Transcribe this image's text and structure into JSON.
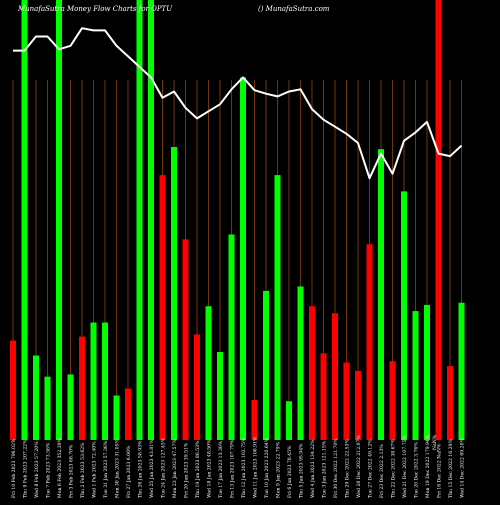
{
  "chart_data": {
    "type": "bar",
    "header_left": "MunafaSutra  Money Flow  Charts for OPTU",
    "header_right": "() MunafaSutra.com",
    "colors": {
      "background": "#000000",
      "up": "#00ff00",
      "down": "#ff0000",
      "line": "#ffffff",
      "grid": "#8b4513"
    },
    "ylim": [
      0,
      100
    ],
    "categories": [
      "Fri 10 Feb 2023",
      "Thu 9 Feb 2023",
      "Wed 8 Feb 2023",
      "Tue 7 Feb 2023",
      "Mon 6 Feb 2023",
      "Fri 3 Feb 2023",
      "Thu 2 Feb 2023",
      "Wed 1 Feb 2023",
      "Tue 31 Jan 2023",
      "Mon 30 Jan 2023",
      "Fri 27 Jan 2023",
      "Thu 26 Jan 2023",
      "Wed 25 Jan 2023",
      "Tue 24 Jan 2023",
      "Mon 23 Jan 2023",
      "Fri 20 Jan 2023",
      "Thu 19 Jan 2023",
      "Wed 18 Jan 2023",
      "Tue 17 Jan 2023",
      "Fri 13 Jan 2023",
      "Thu 12 Jan 2023",
      "Wed 11 Jan 2023",
      "Tue 10 Jan 2023",
      "Mon 9 Jan 2023",
      "Fri 6 Jan 2023",
      "Thu 5 Jan 2023",
      "Wed 4 Jan 2023",
      "Tue 3 Jan 2023",
      "Fri 30 Dec 2022",
      "Thu 29 Dec 2022",
      "Wed 28 Dec 2022",
      "Tue 27 Dec 2022",
      "Fri 23 Dec 2022",
      "Thu 22 Dec 2022",
      "Wed 21 Dec 2022",
      "Tue 20 Dec 2022",
      "Mon 19 Dec 2022",
      "Fri 16 Dec 2022",
      "Thu 15 Dec 2022",
      "Wed 14 Dec 2022"
    ],
    "tick_labels": [
      "Fri 10 Feb 2023 796.02%",
      "Thu 9 Feb 2023 207.22%",
      "Wed 8 Feb 2023 57.20%",
      "Tue 7 Feb 2023 73.56%",
      "Mon 6 Feb 2023 352.39%",
      "Fri 3 Feb 2023 68.70%",
      "Thu 2 Feb 2023 53.62%",
      "Wed 1 Feb 2023 72.40%",
      "Tue 31 Jan 2023 57.36%",
      "Mon 30 Jan 2023 31.05%",
      "Fri 27 Jan 2023 6.06%",
      "Thu 26 Jan 2023 58.93%",
      "Wed 25 Jan 2023 43.81%",
      "Tue 24 Jan 2023 127.45%",
      "Mon 23 Jan 2023 47.57%",
      "Fri 20 Jan 2023 39.51%",
      "Thu 19 Jan 2023 86.53%",
      "Wed 18 Jan 2023 48.50%",
      "Tue 17 Jan 2023 13.30%",
      "Fri 13 Jan 2023 107.79%",
      "Thu 12 Jan 2023 102.75%",
      "Wed 11 Jan 2023 106.91%",
      "Tue 10 Jan 2023 220.64%",
      "Mon 9 Jan 2023 22.79%",
      "Fri 6 Jan 2023 78.45%",
      "Thu 5 Jan 2023 95.94%",
      "Wed 4 Jan 2023 134.22%",
      "Tue 3 Jan 2023 121.15%",
      "Fri 30 Dec 2022 121.70%",
      "Thu 29 Dec 2022 22.53%",
      "Wed 28 Dec 2022 212.07%",
      "Tue 27 Dec 2022 49.12%",
      "Fri 23 Dec 2022 2.13%",
      "Thu 22 Dec 2022 38.67%",
      "Wed 21 Dec 2022 107.75%",
      "Tue 20 Dec 2022 3.76%",
      "Mon 19 Dec 2022 179.94%",
      "Fri 16 Dec 2022 NaN%",
      "Thu 15 Dec 2022 16.29%",
      "Wed 14 Dec 2022 69.20%"
    ],
    "tick_label_extra": "NaN%",
    "bars": [
      {
        "color": "down",
        "value": 22.6
      },
      {
        "color": "up",
        "value": 100
      },
      {
        "color": "up",
        "value": 19.2
      },
      {
        "color": "up",
        "value": 14.4
      },
      {
        "color": "up",
        "value": 100
      },
      {
        "color": "up",
        "value": 14.9
      },
      {
        "color": "down",
        "value": 23.5
      },
      {
        "color": "up",
        "value": 26.7
      },
      {
        "color": "up",
        "value": 26.7
      },
      {
        "color": "up",
        "value": 10.1
      },
      {
        "color": "down",
        "value": 11.7
      },
      {
        "color": "up",
        "value": 100
      },
      {
        "color": "up",
        "value": 100
      },
      {
        "color": "down",
        "value": 60.2
      },
      {
        "color": "up",
        "value": 66.6
      },
      {
        "color": "down",
        "value": 45.6
      },
      {
        "color": "down",
        "value": 24.0
      },
      {
        "color": "up",
        "value": 30.4
      },
      {
        "color": "up",
        "value": 20.0
      },
      {
        "color": "up",
        "value": 46.7
      },
      {
        "color": "up",
        "value": 82.4
      },
      {
        "color": "down",
        "value": 9.1
      },
      {
        "color": "up",
        "value": 33.9
      },
      {
        "color": "up",
        "value": 60.2
      },
      {
        "color": "up",
        "value": 8.8
      },
      {
        "color": "up",
        "value": 34.9
      },
      {
        "color": "down",
        "value": 30.4
      },
      {
        "color": "down",
        "value": 19.7
      },
      {
        "color": "down",
        "value": 28.8
      },
      {
        "color": "down",
        "value": 17.6
      },
      {
        "color": "down",
        "value": 15.7
      },
      {
        "color": "down",
        "value": 44.5
      },
      {
        "color": "up",
        "value": 66.1
      },
      {
        "color": "down",
        "value": 17.9
      },
      {
        "color": "up",
        "value": 56.5
      },
      {
        "color": "up",
        "value": 29.3
      },
      {
        "color": "up",
        "value": 30.7
      },
      {
        "color": "down",
        "value": 100
      },
      {
        "color": "down",
        "value": 16.8
      },
      {
        "color": "up",
        "value": 31.2
      }
    ],
    "line_values": [
      88.5,
      88.5,
      91.7,
      91.7,
      88.8,
      89.6,
      93.6,
      93.1,
      93.1,
      89.6,
      87.2,
      84.8,
      82.4,
      77.8,
      79.2,
      75.5,
      73.1,
      74.7,
      76.3,
      79.7,
      82.4,
      79.5,
      78.7,
      78.1,
      79.2,
      79.7,
      75.2,
      72.8,
      71.2,
      69.6,
      67.5,
      59.5,
      65.1,
      60.5,
      68.0,
      69.9,
      72.3,
      65.1,
      64.5,
      66.9
    ],
    "grid": true
  }
}
